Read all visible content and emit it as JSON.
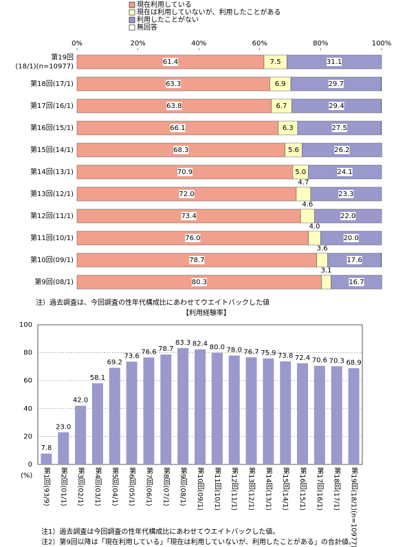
{
  "chart_data": [
    {
      "type": "bar",
      "orientation": "horizontal",
      "stacked": true,
      "categories": [
        "第19回\n(18/1)(n=10977)",
        "第18回(17/1)",
        "第17回(16/1)",
        "第16回(15/1)",
        "第15回(14/1)",
        "第14回(13/1)",
        "第13回(12/1)",
        "第12回(11/1)",
        "第11回(10/1)",
        "第10回(09/1)",
        "第9回(08/1)"
      ],
      "series": [
        {
          "name": "現在利用している",
          "color": "#f0a08c",
          "values": [
            61.4,
            63.3,
            63.8,
            66.1,
            68.3,
            70.9,
            72.0,
            73.4,
            76.0,
            78.7,
            80.3
          ],
          "value_labels": [
            "61.4",
            "63.3",
            "63.8",
            "66.1",
            "68.3",
            "70.9",
            "72.0",
            "73.4",
            "76.0",
            "78.7",
            "80.3"
          ]
        },
        {
          "name": "現在は利用していないが、利用したことがある",
          "color": "#ffffc0",
          "values": [
            7.5,
            6.9,
            6.7,
            6.3,
            5.6,
            5.0,
            4.7,
            4.6,
            4.0,
            3.6,
            3.1
          ],
          "value_labels": [
            "7.5",
            "6.9",
            "6.7",
            "6.3",
            "5.6",
            "5.0",
            "4.7",
            "4.6",
            "4.0",
            "3.6",
            "3.1"
          ]
        },
        {
          "name": "利用したことがない",
          "color": "#9999cc",
          "values": [
            31.1,
            29.7,
            29.4,
            27.5,
            26.2,
            24.1,
            23.3,
            22.0,
            20.0,
            17.6,
            16.7
          ],
          "value_labels": [
            "31.1",
            "29.7",
            "29.4",
            "27.5",
            "26.2",
            "24.1",
            "23.3",
            "22.0",
            "20.0",
            "17.6",
            "16.7"
          ]
        },
        {
          "name": "無回答",
          "color": "#ffffff",
          "values": [
            0,
            0.1,
            0.1,
            0.1,
            0,
            0,
            0,
            0,
            0,
            0.1,
            0
          ]
        }
      ],
      "xlim": [
        0,
        100
      ],
      "xticks": [
        {
          "value": 0,
          "label": "0%"
        },
        {
          "value": 20,
          "label": "20%"
        },
        {
          "value": 40,
          "label": "40%"
        },
        {
          "value": 60,
          "label": "60%"
        },
        {
          "value": 80,
          "label": "80%"
        },
        {
          "value": 100,
          "label": "100%"
        }
      ],
      "notes": [
        "注）過去調査は、今回調査の性年代構成比にあわせてウエイトバックした値"
      ]
    },
    {
      "type": "bar",
      "orientation": "vertical",
      "title": "【利用経験率】",
      "y_label": "(%)",
      "color": "#9999cc",
      "grid": true,
      "categories": [
        "第1回(93/9)",
        "第2回(01/1)",
        "第3回(02/1)",
        "第4回(03/1)",
        "第5回(04/1)",
        "第6回(05/1)",
        "第7回(06/1)",
        "第8回(07/1)",
        "第9回(08/1)",
        "第10回(09/1)",
        "第11回(10/1)",
        "第12回(11/1)",
        "第13回(12/1)",
        "第14回(13/1)",
        "第15回(14/1)",
        "第16回(15/1)",
        "第17回(16/1)",
        "第18回(17/1)",
        "第19回(18/1)(n=10977)"
      ],
      "values": [
        7.8,
        23.0,
        42.0,
        58.1,
        69.2,
        73.6,
        76.6,
        78.7,
        83.3,
        82.4,
        80.0,
        78.0,
        76.7,
        75.9,
        73.8,
        72.4,
        70.6,
        70.3,
        68.9
      ],
      "value_labels": [
        "7.8",
        "23.0",
        "42.0",
        "58.1",
        "69.2",
        "73.6",
        "76.6",
        "78.7",
        "83.3",
        "82.4",
        "80.0",
        "78.0",
        "76.7",
        "75.9",
        "73.8",
        "72.4",
        "70.6",
        "70.3",
        "68.9"
      ],
      "ylim": [
        0,
        100
      ],
      "yticks": [
        0,
        20,
        40,
        60,
        80,
        100
      ],
      "notes": [
        "注1）過去調査は今回調査の性年代構成比にあわせてウエイトバックした値。",
        "注2）第9回以降は「現在利用している」「現在は利用していないが、利用したことがある」の合計値。"
      ]
    }
  ]
}
